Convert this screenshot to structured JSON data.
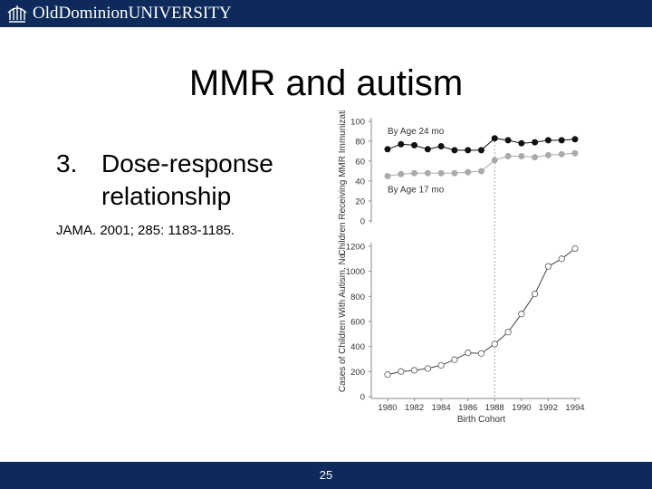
{
  "header": {
    "logo_old": "Old",
    "logo_dominion": "Dominion",
    "logo_university": "UNIVERSITY"
  },
  "slide": {
    "title": "MMR and autism",
    "bullet_number": "3.",
    "bullet_line1": "Dose-response",
    "bullet_line2": "relationship",
    "citation": "JAMA. 2001; 285: 1183-1185."
  },
  "footer": {
    "page_number": "25"
  },
  "colors": {
    "bar": "#0d2a5a",
    "series_24mo": "#111111",
    "series_17mo": "#aaaaaa"
  },
  "chart_data": [
    {
      "type": "line",
      "title": "",
      "xlabel": "",
      "ylabel": "Children Receiving MMR Immunization, %",
      "x": [
        1980,
        1981,
        1982,
        1983,
        1984,
        1985,
        1986,
        1987,
        1988,
        1989,
        1990,
        1991,
        1992,
        1993,
        1994
      ],
      "ylim": [
        0,
        100
      ],
      "yticks": [
        0,
        20,
        40,
        60,
        80,
        100
      ],
      "series": [
        {
          "name": "By Age 24 mo",
          "values": [
            72,
            77,
            76,
            72,
            75,
            71,
            71,
            71,
            83,
            81,
            78,
            79,
            81,
            81,
            82
          ]
        },
        {
          "name": "By Age 17 mo",
          "values": [
            45,
            47,
            48,
            48,
            48,
            48,
            49,
            50,
            61,
            65,
            65,
            64,
            66,
            67,
            68
          ]
        }
      ],
      "annotations": [
        "By Age 24 mo",
        "By Age 17 mo"
      ]
    },
    {
      "type": "line",
      "title": "",
      "xlabel": "Birth Cohort",
      "ylabel": "Cases of Children With Autism, No.",
      "x": [
        1980,
        1981,
        1982,
        1983,
        1984,
        1985,
        1986,
        1987,
        1988,
        1989,
        1990,
        1991,
        1992,
        1993,
        1994
      ],
      "xticks": [
        1980,
        1982,
        1984,
        1986,
        1988,
        1990,
        1992,
        1994
      ],
      "ylim": [
        0,
        1200
      ],
      "yticks": [
        0,
        200,
        400,
        600,
        800,
        1000,
        1200
      ],
      "series": [
        {
          "name": "Cases",
          "values": [
            176,
            200,
            210,
            225,
            250,
            295,
            350,
            345,
            420,
            515,
            660,
            820,
            1040,
            1100,
            1182
          ]
        }
      ]
    }
  ]
}
